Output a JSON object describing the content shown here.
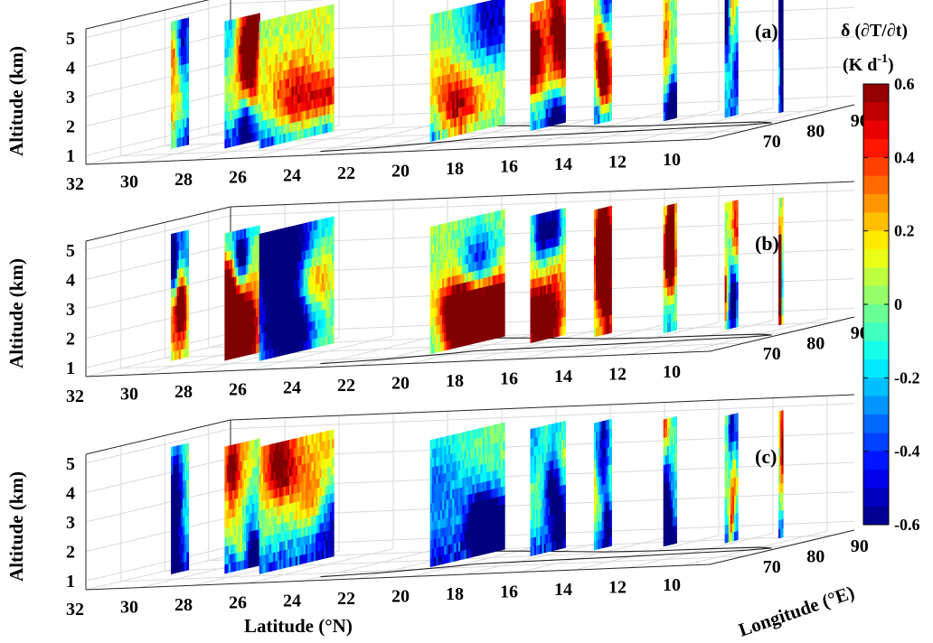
{
  "chart_data": {
    "type": "heatmap",
    "description_type": "3d-slice",
    "panels": [
      {
        "label": "(a)",
        "seed": 11
      },
      {
        "label": "(b)",
        "seed": 23
      },
      {
        "label": "(c)",
        "seed": 37
      }
    ],
    "latitude": {
      "label": "Latitude (°N)",
      "ticks": [
        "32",
        "30",
        "28",
        "26",
        "24",
        "22",
        "20",
        "18",
        "16",
        "14",
        "12",
        "10"
      ],
      "range": [
        32,
        9
      ]
    },
    "longitude": {
      "label": "Longitude (°E)",
      "ticks": [
        "70",
        "80",
        "90"
      ],
      "range": [
        62,
        95
      ]
    },
    "altitude": {
      "label": "Altitude (km)",
      "ticks": [
        "1",
        "2",
        "3",
        "4",
        "5"
      ],
      "range": [
        0.7,
        5.3
      ]
    },
    "slices_lat": [
      29.5,
      27.2,
      25.6,
      19.3,
      16.9,
      15.2,
      12.8,
      10.7,
      9.2
    ],
    "colorbar": {
      "title_line1": "δ (∂T/∂t)",
      "title_line2": "(K d",
      "title_sup": "-1",
      "title_end": ")",
      "ticks": [
        "0.6",
        "0.4",
        "0.2",
        "0",
        "-0.2",
        "-0.4",
        "-0.6"
      ],
      "range": [
        -0.6,
        0.6
      ],
      "colormap": "jet"
    }
  }
}
